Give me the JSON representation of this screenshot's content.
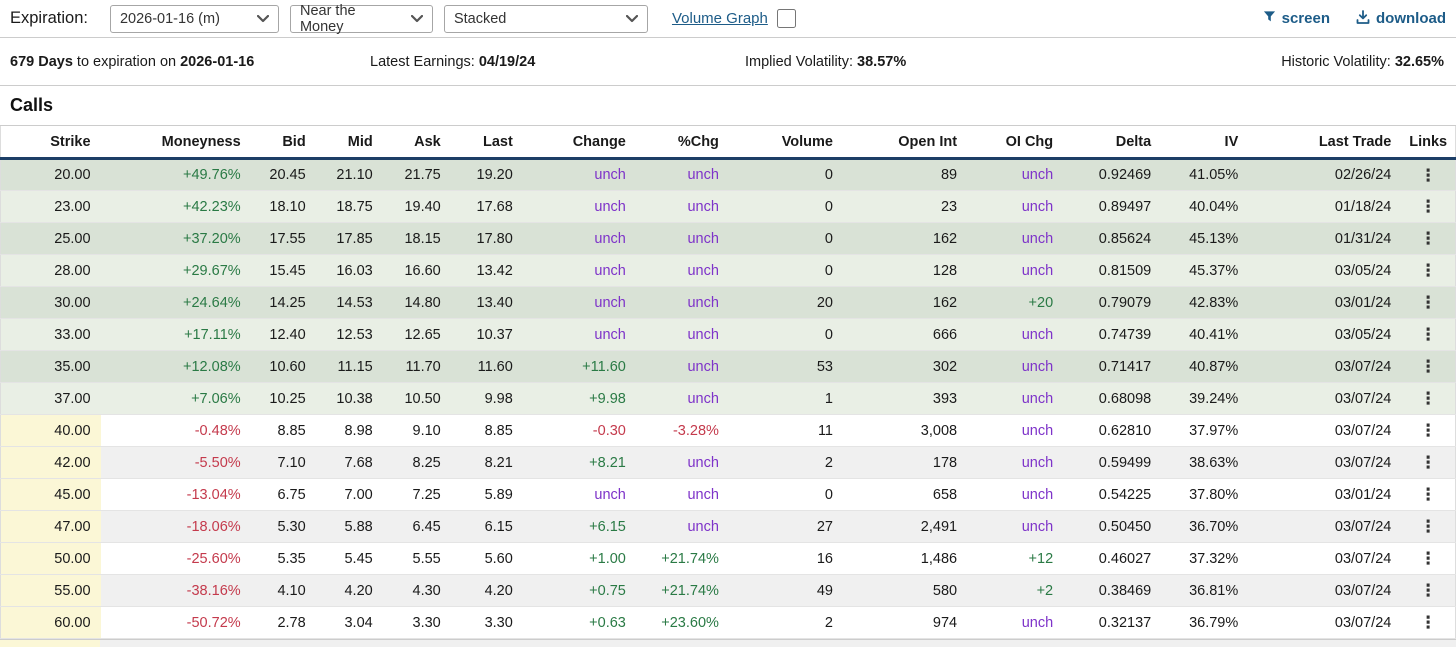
{
  "toolbar": {
    "expiration_label": "Expiration:",
    "expiration_value": "2026-01-16 (m)",
    "moneyness_filter_value": "Near the Money",
    "layout_value": "Stacked",
    "volume_graph_label": "Volume Graph",
    "screen_label": "screen",
    "download_label": "download"
  },
  "info_bar": {
    "days": "679 Days",
    "days_mid": " to expiration on ",
    "expiration_date": "2026-01-16",
    "earnings_label": "Latest Earnings: ",
    "earnings_value": "04/19/24",
    "implied_vol_label": "Implied Volatility: ",
    "implied_vol_value": "38.57%",
    "historic_vol_label": "Historic Volatility: ",
    "historic_vol_value": "32.65%"
  },
  "section_title": "Calls",
  "table": {
    "columns": [
      "Strike",
      "Moneyness",
      "Bid",
      "Mid",
      "Ask",
      "Last",
      "Change",
      "%Chg",
      "Volume",
      "Open Int",
      "OI Chg",
      "Delta",
      "IV",
      "Last Trade",
      "Links"
    ],
    "rows": [
      {
        "strike": "20.00",
        "moneyness": "+49.76%",
        "bid": "20.45",
        "mid": "21.10",
        "ask": "21.75",
        "last": "19.20",
        "change": "unch",
        "pchg": "unch",
        "volume": "0",
        "open_int": "89",
        "oi_chg": "unch",
        "delta": "0.92469",
        "iv": "41.05%",
        "last_trade": "02/26/24",
        "itm": true
      },
      {
        "strike": "23.00",
        "moneyness": "+42.23%",
        "bid": "18.10",
        "mid": "18.75",
        "ask": "19.40",
        "last": "17.68",
        "change": "unch",
        "pchg": "unch",
        "volume": "0",
        "open_int": "23",
        "oi_chg": "unch",
        "delta": "0.89497",
        "iv": "40.04%",
        "last_trade": "01/18/24",
        "itm": true
      },
      {
        "strike": "25.00",
        "moneyness": "+37.20%",
        "bid": "17.55",
        "mid": "17.85",
        "ask": "18.15",
        "last": "17.80",
        "change": "unch",
        "pchg": "unch",
        "volume": "0",
        "open_int": "162",
        "oi_chg": "unch",
        "delta": "0.85624",
        "iv": "45.13%",
        "last_trade": "01/31/24",
        "itm": true
      },
      {
        "strike": "28.00",
        "moneyness": "+29.67%",
        "bid": "15.45",
        "mid": "16.03",
        "ask": "16.60",
        "last": "13.42",
        "change": "unch",
        "pchg": "unch",
        "volume": "0",
        "open_int": "128",
        "oi_chg": "unch",
        "delta": "0.81509",
        "iv": "45.37%",
        "last_trade": "03/05/24",
        "itm": true
      },
      {
        "strike": "30.00",
        "moneyness": "+24.64%",
        "bid": "14.25",
        "mid": "14.53",
        "ask": "14.80",
        "last": "13.40",
        "change": "unch",
        "pchg": "unch",
        "volume": "20",
        "open_int": "162",
        "oi_chg": "+20",
        "delta": "0.79079",
        "iv": "42.83%",
        "last_trade": "03/01/24",
        "itm": true
      },
      {
        "strike": "33.00",
        "moneyness": "+17.11%",
        "bid": "12.40",
        "mid": "12.53",
        "ask": "12.65",
        "last": "10.37",
        "change": "unch",
        "pchg": "unch",
        "volume": "0",
        "open_int": "666",
        "oi_chg": "unch",
        "delta": "0.74739",
        "iv": "40.41%",
        "last_trade": "03/05/24",
        "itm": true
      },
      {
        "strike": "35.00",
        "moneyness": "+12.08%",
        "bid": "10.60",
        "mid": "11.15",
        "ask": "11.70",
        "last": "11.60",
        "change": "+11.60",
        "pchg": "unch",
        "volume": "53",
        "open_int": "302",
        "oi_chg": "unch",
        "delta": "0.71417",
        "iv": "40.87%",
        "last_trade": "03/07/24",
        "itm": true
      },
      {
        "strike": "37.00",
        "moneyness": "+7.06%",
        "bid": "10.25",
        "mid": "10.38",
        "ask": "10.50",
        "last": "9.98",
        "change": "+9.98",
        "pchg": "unch",
        "volume": "1",
        "open_int": "393",
        "oi_chg": "unch",
        "delta": "0.68098",
        "iv": "39.24%",
        "last_trade": "03/07/24",
        "itm": true
      },
      {
        "strike": "40.00",
        "moneyness": "-0.48%",
        "bid": "8.85",
        "mid": "8.98",
        "ask": "9.10",
        "last": "8.85",
        "change": "-0.30",
        "pchg": "-3.28%",
        "volume": "11",
        "open_int": "3,008",
        "oi_chg": "unch",
        "delta": "0.62810",
        "iv": "37.97%",
        "last_trade": "03/07/24",
        "itm": false
      },
      {
        "strike": "42.00",
        "moneyness": "-5.50%",
        "bid": "7.10",
        "mid": "7.68",
        "ask": "8.25",
        "last": "8.21",
        "change": "+8.21",
        "pchg": "unch",
        "volume": "2",
        "open_int": "178",
        "oi_chg": "unch",
        "delta": "0.59499",
        "iv": "38.63%",
        "last_trade": "03/07/24",
        "itm": false
      },
      {
        "strike": "45.00",
        "moneyness": "-13.04%",
        "bid": "6.75",
        "mid": "7.00",
        "ask": "7.25",
        "last": "5.89",
        "change": "unch",
        "pchg": "unch",
        "volume": "0",
        "open_int": "658",
        "oi_chg": "unch",
        "delta": "0.54225",
        "iv": "37.80%",
        "last_trade": "03/01/24",
        "itm": false
      },
      {
        "strike": "47.00",
        "moneyness": "-18.06%",
        "bid": "5.30",
        "mid": "5.88",
        "ask": "6.45",
        "last": "6.15",
        "change": "+6.15",
        "pchg": "unch",
        "volume": "27",
        "open_int": "2,491",
        "oi_chg": "unch",
        "delta": "0.50450",
        "iv": "36.70%",
        "last_trade": "03/07/24",
        "itm": false
      },
      {
        "strike": "50.00",
        "moneyness": "-25.60%",
        "bid": "5.35",
        "mid": "5.45",
        "ask": "5.55",
        "last": "5.60",
        "change": "+1.00",
        "pchg": "+21.74%",
        "volume": "16",
        "open_int": "1,486",
        "oi_chg": "+12",
        "delta": "0.46027",
        "iv": "37.32%",
        "last_trade": "03/07/24",
        "itm": false
      },
      {
        "strike": "55.00",
        "moneyness": "-38.16%",
        "bid": "4.10",
        "mid": "4.20",
        "ask": "4.30",
        "last": "4.20",
        "change": "+0.75",
        "pchg": "+21.74%",
        "volume": "49",
        "open_int": "580",
        "oi_chg": "+2",
        "delta": "0.38469",
        "iv": "36.81%",
        "last_trade": "03/07/24",
        "itm": false
      },
      {
        "strike": "60.00",
        "moneyness": "-50.72%",
        "bid": "2.78",
        "mid": "3.04",
        "ask": "3.30",
        "last": "3.30",
        "change": "+0.63",
        "pchg": "+23.60%",
        "volume": "2",
        "open_int": "974",
        "oi_chg": "unch",
        "delta": "0.32137",
        "iv": "36.79%",
        "last_trade": "03/07/24",
        "itm": false
      }
    ]
  },
  "colors": {
    "link_blue": "#1d5c88",
    "navy_border": "#1c3e66",
    "green_text": "#2a7a45",
    "red_text": "#c43a4c",
    "purple_text": "#7e33c9",
    "row_green_dark": "#d9e2d6",
    "row_green_light": "#e9efe5",
    "row_gray": "#f0f0f0",
    "row_white": "#ffffff",
    "strike_yellow": "#fbf7d6",
    "header_text": "#1a1a1a",
    "body_text": "#1a1a1a",
    "divider": "#cccccc"
  }
}
